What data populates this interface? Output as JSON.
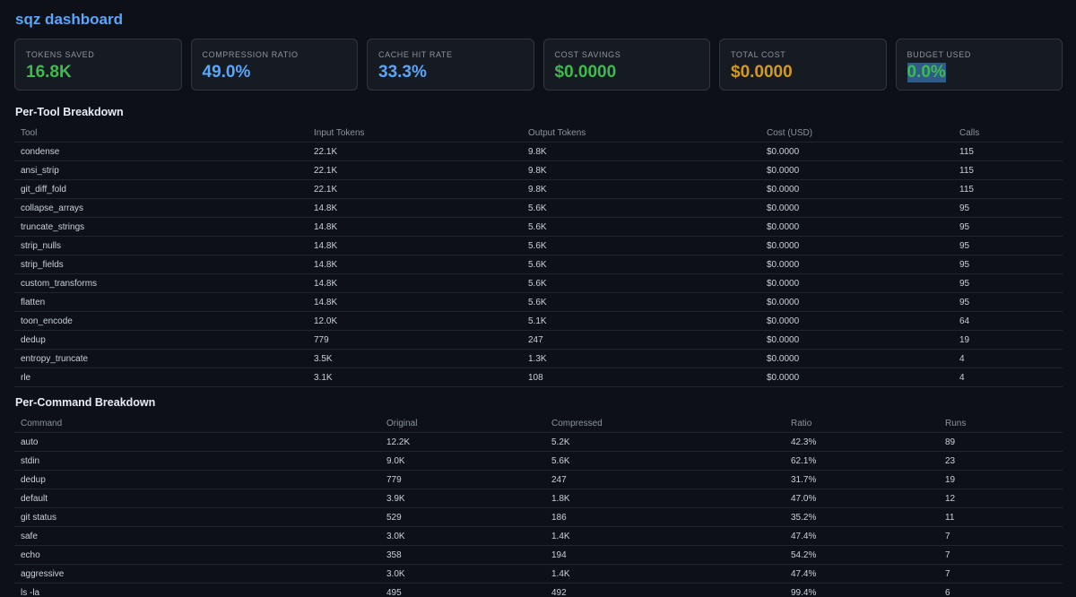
{
  "app": {
    "title": "sqz dashboard"
  },
  "colors": {
    "green": "#3fb950",
    "blue": "#58a6ff",
    "amber": "#d29922",
    "highlight": "#2f5b8a"
  },
  "metrics": [
    {
      "label": "TOKENS SAVED",
      "value": "16.8K",
      "color": "#3fb950"
    },
    {
      "label": "COMPRESSION RATIO",
      "value": "49.0%",
      "color": "#58a6ff"
    },
    {
      "label": "CACHE HIT RATE",
      "value": "33.3%",
      "color": "#58a6ff"
    },
    {
      "label": "COST SAVINGS",
      "value": "$0.0000",
      "color": "#3fb950"
    },
    {
      "label": "TOTAL COST",
      "value": "$0.0000",
      "color": "#d29922"
    },
    {
      "label": "BUDGET USED",
      "value": "0.0%",
      "color": "#3fb950",
      "selected": true
    }
  ],
  "tool_breakdown": {
    "title": "Per-Tool Breakdown",
    "columns": [
      "Tool",
      "Input Tokens",
      "Output Tokens",
      "Cost (USD)",
      "Calls"
    ],
    "rows": [
      [
        "condense",
        "22.1K",
        "9.8K",
        "$0.0000",
        "115"
      ],
      [
        "ansi_strip",
        "22.1K",
        "9.8K",
        "$0.0000",
        "115"
      ],
      [
        "git_diff_fold",
        "22.1K",
        "9.8K",
        "$0.0000",
        "115"
      ],
      [
        "collapse_arrays",
        "14.8K",
        "5.6K",
        "$0.0000",
        "95"
      ],
      [
        "truncate_strings",
        "14.8K",
        "5.6K",
        "$0.0000",
        "95"
      ],
      [
        "strip_nulls",
        "14.8K",
        "5.6K",
        "$0.0000",
        "95"
      ],
      [
        "strip_fields",
        "14.8K",
        "5.6K",
        "$0.0000",
        "95"
      ],
      [
        "custom_transforms",
        "14.8K",
        "5.6K",
        "$0.0000",
        "95"
      ],
      [
        "flatten",
        "14.8K",
        "5.6K",
        "$0.0000",
        "95"
      ],
      [
        "toon_encode",
        "12.0K",
        "5.1K",
        "$0.0000",
        "64"
      ],
      [
        "dedup",
        "779",
        "247",
        "$0.0000",
        "19"
      ],
      [
        "entropy_truncate",
        "3.5K",
        "1.3K",
        "$0.0000",
        "4"
      ],
      [
        "rle",
        "3.1K",
        "108",
        "$0.0000",
        "4"
      ]
    ]
  },
  "command_breakdown": {
    "title": "Per-Command Breakdown",
    "columns": [
      "Command",
      "Original",
      "Compressed",
      "Ratio",
      "Runs"
    ],
    "rows": [
      [
        "auto",
        "12.2K",
        "5.2K",
        "42.3%",
        "89"
      ],
      [
        "stdin",
        "9.0K",
        "5.6K",
        "62.1%",
        "23"
      ],
      [
        "dedup",
        "779",
        "247",
        "31.7%",
        "19"
      ],
      [
        "default",
        "3.9K",
        "1.8K",
        "47.0%",
        "12"
      ],
      [
        "git status",
        "529",
        "186",
        "35.2%",
        "11"
      ],
      [
        "safe",
        "3.0K",
        "1.4K",
        "47.4%",
        "7"
      ],
      [
        "echo",
        "358",
        "194",
        "54.2%",
        "7"
      ],
      [
        "aggressive",
        "3.0K",
        "1.4K",
        "47.4%",
        "7"
      ],
      [
        "ls -la",
        "495",
        "492",
        "99.4%",
        "6"
      ]
    ]
  }
}
